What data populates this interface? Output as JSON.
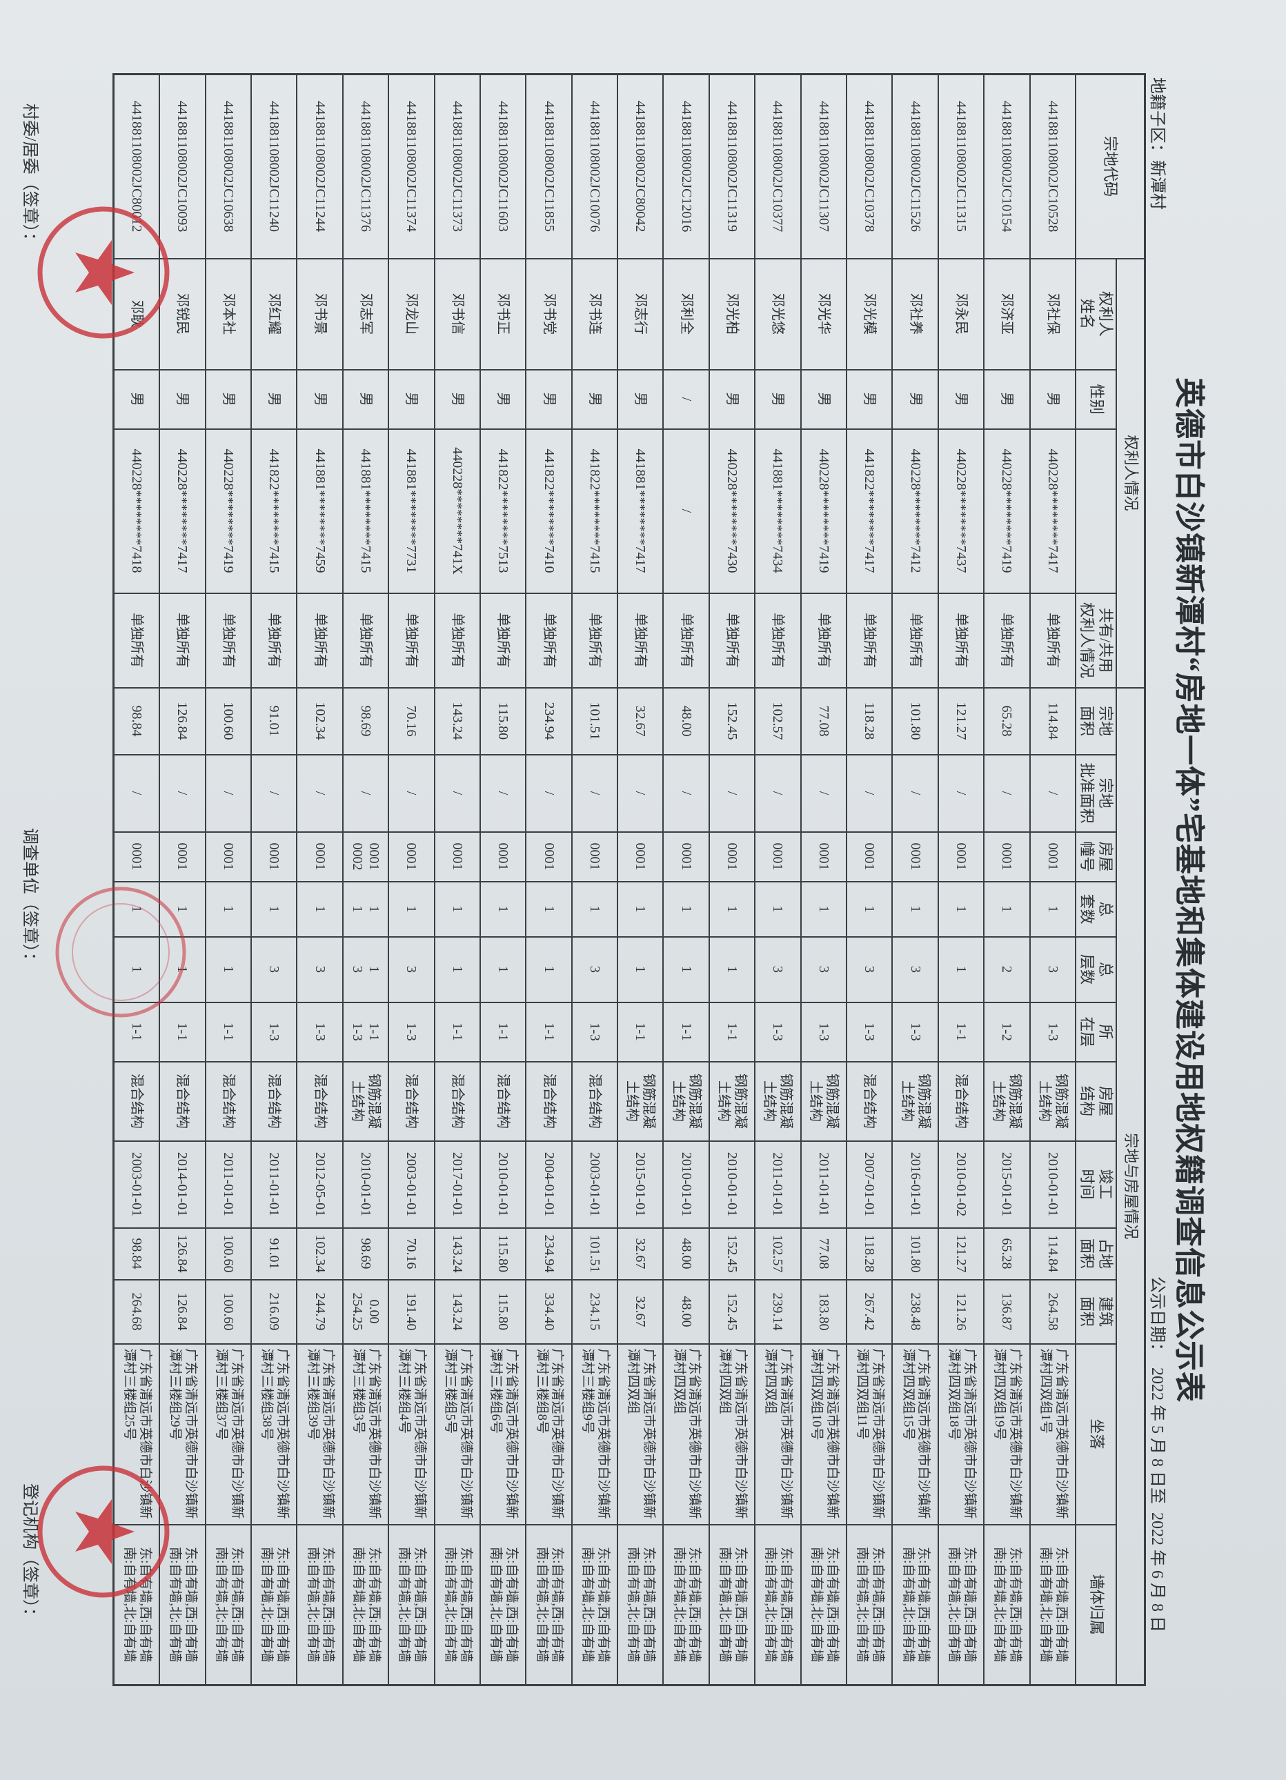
{
  "title": "英德市白沙镇新潭村“房地一体”宅基地和集体建设用地权籍调查信息公示表",
  "subdistrict": "地籍子区：新潭村",
  "publicity_date": "公示日期：  2022 年 5 月 8 日至  2022 年 6 月 8 日",
  "table": {
    "group_headers": {
      "code": "宗地代码",
      "owner_group": "权利人情况",
      "land_group": "宗地与房屋情况"
    },
    "columns": [
      {
        "key": "name",
        "label": "权利人\n姓名"
      },
      {
        "key": "sex",
        "label": "性别"
      },
      {
        "key": "id",
        "label": ""
      },
      {
        "key": "ownership",
        "label": "共有/共用\n权利人情况"
      },
      {
        "key": "land_area",
        "label": "宗地\n面积"
      },
      {
        "key": "approved_area",
        "label": "宗地\n批准面积"
      },
      {
        "key": "house_no",
        "label": "房屋\n幢号"
      },
      {
        "key": "sets",
        "label": "总\n套数"
      },
      {
        "key": "floors",
        "label": "总\n层数"
      },
      {
        "key": "located_floor",
        "label": "所\n在层"
      },
      {
        "key": "structure",
        "label": "房屋\n结构"
      },
      {
        "key": "completion",
        "label": "竣工\n时间"
      },
      {
        "key": "footprint",
        "label": "占地\n面积"
      },
      {
        "key": "building_area",
        "label": "建筑\n面积"
      },
      {
        "key": "address",
        "label": "坐落"
      },
      {
        "key": "wall",
        "label": "墙体归属"
      }
    ],
    "rows": [
      [
        "441881108002JC10528",
        "邓社保",
        "男",
        "440228********7417",
        "单独所有",
        "114.84",
        "/",
        "0001",
        "1",
        "3",
        "1-3",
        "钢筋混凝\n土结构",
        "2010-01-01",
        "114.84",
        "264.58",
        "广东省清远市英德市白沙镇新潭村四双组1号",
        "东:自有墙,西:自有墙\n南:自有墙,北:自有墙"
      ],
      [
        "441881108002JC10154",
        "邓济亚",
        "男",
        "440228********7419",
        "单独所有",
        "65.28",
        "/",
        "0001",
        "1",
        "2",
        "1-2",
        "钢筋混凝\n土结构",
        "2015-01-01",
        "65.28",
        "136.87",
        "广东省清远市英德市白沙镇新潭村四双组19号",
        "东:自有墙,西:自有墙\n南:自有墙,北:自有墙"
      ],
      [
        "441881108002JC11315",
        "邓永民",
        "男",
        "440228********7437",
        "单独所有",
        "121.27",
        "/",
        "0001",
        "1",
        "1",
        "1-1",
        "混合结构",
        "2010-01-02",
        "121.27",
        "121.26",
        "广东省清远市英德市白沙镇新潭村四双组18号",
        "东:自有墙,西:自有墙\n南:自有墙,北:自有墙"
      ],
      [
        "441881108002JC11526",
        "邓社养",
        "男",
        "440228********7412",
        "单独所有",
        "101.80",
        "/",
        "0001",
        "1",
        "3",
        "1-3",
        "钢筋混凝\n土结构",
        "2016-01-01",
        "101.80",
        "238.48",
        "广东省清远市英德市白沙镇新潭村四双组15号",
        "东:自有墙,西:自有墙\n南:自有墙,北:自有墙"
      ],
      [
        "441881108002JC10378",
        "邓光模",
        "男",
        "441822********7417",
        "单独所有",
        "118.28",
        "/",
        "0001",
        "1",
        "3",
        "1-3",
        "混合结构",
        "2007-01-01",
        "118.28",
        "267.42",
        "广东省清远市英德市白沙镇新潭村四双组11号",
        "东:自有墙,西:自有墙\n南:自有墙,北:自有墙"
      ],
      [
        "441881108002JC11307",
        "邓光华",
        "男",
        "440228********7419",
        "单独所有",
        "77.08",
        "/",
        "0001",
        "1",
        "3",
        "1-3",
        "钢筋混凝\n土结构",
        "2011-01-01",
        "77.08",
        "183.80",
        "广东省清远市英德市白沙镇新潭村四双组10号",
        "东:自有墙,西:自有墙\n南:自有墙,北:自有墙"
      ],
      [
        "441881108002JC10377",
        "邓光悠",
        "男",
        "441881********7434",
        "单独所有",
        "102.57",
        "/",
        "0001",
        "1",
        "3",
        "1-3",
        "钢筋混凝\n土结构",
        "2011-01-01",
        "102.57",
        "239.14",
        "广东省清远市英德市白沙镇新潭村四双组",
        "东:自有墙,西:自有墙\n南:自有墙,北:自有墙"
      ],
      [
        "441881108002JC11319",
        "邓光柏",
        "男",
        "440228********7430",
        "单独所有",
        "152.45",
        "/",
        "0001",
        "1",
        "1",
        "1-1",
        "钢筋混凝\n土结构",
        "2010-01-01",
        "152.45",
        "152.45",
        "广东省清远市英德市白沙镇新潭村四双组",
        "东:自有墙,西:自有墙\n南:自有墙,北:自有墙"
      ],
      [
        "441881108002JC12016",
        "邓利全",
        "/",
        "/",
        "单独所有",
        "48.00",
        "/",
        "0001",
        "1",
        "1",
        "1-1",
        "钢筋混凝\n土结构",
        "2010-01-01",
        "48.00",
        "48.00",
        "广东省清远市英德市白沙镇新潭村四双组",
        "东:自有墙,西:自有墙\n南:自有墙,北:自有墙"
      ],
      [
        "441881108002JC80042",
        "邓志行",
        "男",
        "441881********7417",
        "单独所有",
        "32.67",
        "/",
        "0001",
        "1",
        "1",
        "1-1",
        "钢筋混凝\n土结构",
        "2015-01-01",
        "32.67",
        "32.67",
        "广东省清远市英德市白沙镇新潭村四双组",
        "东:自有墙,西:自有墙\n南:自有墙,北:自有墙"
      ],
      [
        "441881108002JC10076",
        "邓书连",
        "男",
        "441822********7415",
        "单独所有",
        "101.51",
        "/",
        "0001",
        "1",
        "3",
        "1-3",
        "混合结构",
        "2003-01-01",
        "101.51",
        "234.15",
        "广东省清远市英德市白沙镇新潭村三楼组9号",
        "东:自有墙,西:自有墙\n南:自有墙,北:自有墙"
      ],
      [
        "441881108002JC11855",
        "邓书党",
        "男",
        "441822********7410",
        "单独所有",
        "234.94",
        "/",
        "0001",
        "1",
        "1",
        "1-1",
        "混合结构",
        "2004-01-01",
        "234.94",
        "334.40",
        "广东省清远市英德市白沙镇新潭村三楼组8号",
        "东:自有墙,西:自有墙\n南:自有墙,北:自有墙"
      ],
      [
        "441881108002JC11603",
        "邓书正",
        "男",
        "441822********7513",
        "单独所有",
        "115.80",
        "/",
        "0001",
        "1",
        "1",
        "1-1",
        "混合结构",
        "2010-01-01",
        "115.80",
        "115.80",
        "广东省清远市英德市白沙镇新潭村三楼组6号",
        "东:自有墙,西:自有墙\n南:自有墙,北:自有墙"
      ],
      [
        "441881108002JC11373",
        "邓书信",
        "男",
        "440228********741X",
        "单独所有",
        "143.24",
        "/",
        "0001",
        "1",
        "1",
        "1-1",
        "混合结构",
        "2017-01-01",
        "143.24",
        "143.24",
        "广东省清远市英德市白沙镇新潭村三楼组5号",
        "东:自有墙,西:自有墙\n南:自有墙,北:自有墙"
      ],
      [
        "441881108002JC11374",
        "邓龙山",
        "男",
        "441881********7731",
        "单独所有",
        "70.16",
        "/",
        "0001",
        "1",
        "3",
        "1-3",
        "混合结构",
        "2003-01-01",
        "70.16",
        "191.40",
        "广东省清远市英德市白沙镇新潭村三楼组4号",
        "东:自有墙,西:自有墙\n南:自有墙,北:自有墙"
      ],
      [
        "441881108002JC11376",
        "邓志军",
        "男",
        "441881********7415",
        "单独所有",
        "98.69",
        "/",
        "0001\n0002",
        "1\n1",
        "1\n3",
        "1-1\n1-3",
        "钢筋混凝\n土结构",
        "2010-01-01",
        "98.69",
        "0.00\n254.25",
        "广东省清远市英德市白沙镇新潭村三楼组3号",
        "东:自有墙,西:自有墙\n南:自有墙,北:自有墙"
      ],
      [
        "441881108002JC11244",
        "邓书景",
        "男",
        "441881********7459",
        "单独所有",
        "102.34",
        "/",
        "0001",
        "1",
        "3",
        "1-3",
        "混合结构",
        "2012-05-01",
        "102.34",
        "244.79",
        "广东省清远市英德市白沙镇新潭村三楼组39号",
        "东:自有墙,西:自有墙\n南:自有墙,北:自有墙"
      ],
      [
        "441881108002JC11240",
        "邓红耀",
        "男",
        "441822********7415",
        "单独所有",
        "91.01",
        "/",
        "0001",
        "1",
        "3",
        "1-3",
        "混合结构",
        "2011-01-01",
        "91.01",
        "216.09",
        "广东省清远市英德市白沙镇新潭村三楼组38号",
        "东:自有墙,西:自有墙\n南:自有墙,北:自有墙"
      ],
      [
        "441881108002JC10638",
        "邓本社",
        "男",
        "440228********7419",
        "单独所有",
        "100.60",
        "/",
        "0001",
        "1",
        "1",
        "1-1",
        "混合结构",
        "2011-01-01",
        "100.60",
        "100.60",
        "广东省清远市英德市白沙镇新潭村三楼组37号",
        "东:自有墙,西:自有墙\n南:自有墙,北:自有墙"
      ],
      [
        "441881108002JC10093",
        "邓锐民",
        "男",
        "440228********7417",
        "单独所有",
        "126.84",
        "/",
        "0001",
        "1",
        "1",
        "1-1",
        "混合结构",
        "2014-01-01",
        "126.84",
        "126.84",
        "广东省清远市英德市白沙镇新潭村三楼组29号",
        "东:自有墙,西:自有墙\n南:自有墙,北:自有墙"
      ],
      [
        "441881108002JC80012",
        "邓耿",
        "男",
        "440228********7418",
        "单独所有",
        "98.84",
        "/",
        "0001",
        "1",
        "1",
        "1-1",
        "混合结构",
        "2003-01-01",
        "98.84",
        "264.68",
        "广东省清远市英德市白沙镇新潭村三楼组25号",
        "东:自有墙,西:自有墙\n南:自有墙,北:自有墙"
      ]
    ]
  },
  "footer": {
    "village_committee": "村委/居委（签章）：",
    "survey_unit": "调查单位（签章）：",
    "registration_agency": "登记机构（签章）："
  },
  "colors": {
    "paper": "#dde2e5",
    "ink": "#2e3336",
    "seal": "#c8323a"
  }
}
